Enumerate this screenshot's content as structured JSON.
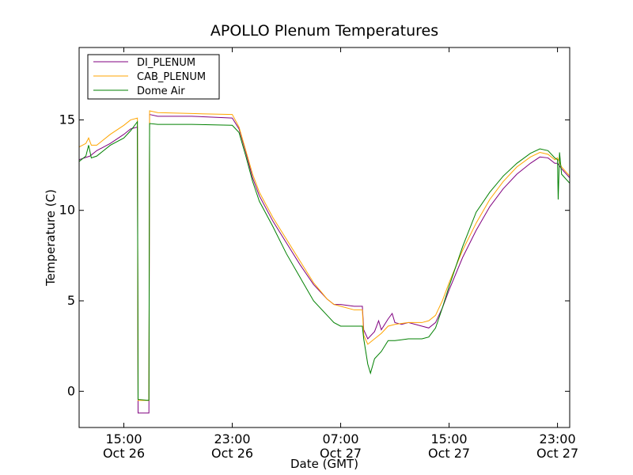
{
  "chart_data": {
    "type": "line",
    "title": "APOLLO Plenum Temperatures",
    "xlabel": "Date (GMT)",
    "ylabel": "Temperature (C)",
    "xlim": [
      11.7,
      47.9
    ],
    "ylim": [
      -2,
      19
    ],
    "x_unit": "hours since Oct 26 00:00 GMT",
    "x_ticks": [
      {
        "value": 15,
        "line1": "15:00",
        "line2": "Oct 26"
      },
      {
        "value": 23,
        "line1": "23:00",
        "line2": "Oct 26"
      },
      {
        "value": 31,
        "line1": "07:00",
        "line2": "Oct 27"
      },
      {
        "value": 39,
        "line1": "15:00",
        "line2": "Oct 27"
      },
      {
        "value": 47,
        "line1": "23:00",
        "line2": "Oct 27"
      }
    ],
    "y_ticks": [
      {
        "value": 0,
        "label": "0"
      },
      {
        "value": 5,
        "label": "5"
      },
      {
        "value": 10,
        "label": "10"
      },
      {
        "value": 15,
        "label": "15"
      }
    ],
    "legend_position": "top-left",
    "series": [
      {
        "name": "DI_PLENUM",
        "color": "#800080",
        "points": [
          [
            11.7,
            12.8
          ],
          [
            12.5,
            13.0
          ],
          [
            13,
            13.3
          ],
          [
            14,
            13.7
          ],
          [
            15,
            14.2
          ],
          [
            15.5,
            14.5
          ],
          [
            16,
            14.6
          ],
          [
            16.05,
            -1.2
          ],
          [
            16.85,
            -1.2
          ],
          [
            16.9,
            15.3
          ],
          [
            17.5,
            15.2
          ],
          [
            20,
            15.2
          ],
          [
            23,
            15.1
          ],
          [
            23.5,
            14.5
          ],
          [
            24,
            13.2
          ],
          [
            24.5,
            11.8
          ],
          [
            25,
            10.8
          ],
          [
            26,
            9.4
          ],
          [
            27,
            8.2
          ],
          [
            28,
            7.0
          ],
          [
            29,
            5.9
          ],
          [
            30,
            5.1
          ],
          [
            30.5,
            4.8
          ],
          [
            31,
            4.8
          ],
          [
            32,
            4.7
          ],
          [
            32.6,
            4.7
          ],
          [
            32.7,
            3.4
          ],
          [
            33,
            2.9
          ],
          [
            33.5,
            3.3
          ],
          [
            33.8,
            3.9
          ],
          [
            34,
            3.4
          ],
          [
            34.5,
            4.0
          ],
          [
            34.8,
            4.3
          ],
          [
            35,
            3.8
          ],
          [
            35.5,
            3.7
          ],
          [
            36,
            3.8
          ],
          [
            37,
            3.6
          ],
          [
            37.5,
            3.5
          ],
          [
            38,
            3.8
          ],
          [
            38.5,
            4.6
          ],
          [
            39,
            5.6
          ],
          [
            40,
            7.4
          ],
          [
            41,
            8.9
          ],
          [
            42,
            10.2
          ],
          [
            43,
            11.2
          ],
          [
            44,
            12.0
          ],
          [
            45,
            12.6
          ],
          [
            45.7,
            12.95
          ],
          [
            46.3,
            12.9
          ],
          [
            46.8,
            12.6
          ],
          [
            47,
            12.6
          ],
          [
            47.3,
            12.3
          ],
          [
            47.9,
            11.8
          ]
        ]
      },
      {
        "name": "CAB_PLENUM",
        "color": "#ffa500",
        "points": [
          [
            11.7,
            13.5
          ],
          [
            12.2,
            13.7
          ],
          [
            12.4,
            14.0
          ],
          [
            12.6,
            13.6
          ],
          [
            13,
            13.6
          ],
          [
            14,
            14.2
          ],
          [
            15,
            14.7
          ],
          [
            15.5,
            15.0
          ],
          [
            16,
            15.1
          ],
          [
            16.05,
            -0.5
          ],
          [
            16.85,
            -0.5
          ],
          [
            16.9,
            15.5
          ],
          [
            17.5,
            15.4
          ],
          [
            20,
            15.35
          ],
          [
            23,
            15.3
          ],
          [
            23.5,
            14.6
          ],
          [
            24,
            13.3
          ],
          [
            24.5,
            12.0
          ],
          [
            25,
            11.0
          ],
          [
            26,
            9.6
          ],
          [
            27,
            8.4
          ],
          [
            28,
            7.2
          ],
          [
            29,
            6.0
          ],
          [
            30,
            5.1
          ],
          [
            30.5,
            4.8
          ],
          [
            31,
            4.7
          ],
          [
            32,
            4.5
          ],
          [
            32.6,
            4.5
          ],
          [
            32.7,
            3.1
          ],
          [
            33,
            2.6
          ],
          [
            33.5,
            2.9
          ],
          [
            34,
            3.2
          ],
          [
            34.5,
            3.6
          ],
          [
            35,
            3.7
          ],
          [
            36,
            3.8
          ],
          [
            37,
            3.8
          ],
          [
            37.5,
            3.9
          ],
          [
            38,
            4.2
          ],
          [
            38.5,
            5.0
          ],
          [
            39,
            6.0
          ],
          [
            40,
            7.8
          ],
          [
            41,
            9.3
          ],
          [
            42,
            10.6
          ],
          [
            43,
            11.6
          ],
          [
            44,
            12.4
          ],
          [
            45,
            12.95
          ],
          [
            45.7,
            13.2
          ],
          [
            46.3,
            13.1
          ],
          [
            46.8,
            12.8
          ],
          [
            47,
            12.9
          ],
          [
            47.3,
            12.4
          ],
          [
            47.9,
            11.9
          ]
        ]
      },
      {
        "name": "Dome Air",
        "color": "#008000",
        "points": [
          [
            11.7,
            12.7
          ],
          [
            12.2,
            13.0
          ],
          [
            12.4,
            13.6
          ],
          [
            12.6,
            12.9
          ],
          [
            13,
            13.0
          ],
          [
            14,
            13.6
          ],
          [
            15,
            14.0
          ],
          [
            15.5,
            14.4
          ],
          [
            16,
            14.9
          ],
          [
            16.05,
            -0.45
          ],
          [
            16.85,
            -0.5
          ],
          [
            16.9,
            14.8
          ],
          [
            17.5,
            14.75
          ],
          [
            20,
            14.75
          ],
          [
            23,
            14.7
          ],
          [
            23.5,
            14.3
          ],
          [
            24,
            13.0
          ],
          [
            24.5,
            11.6
          ],
          [
            25,
            10.5
          ],
          [
            26,
            9.1
          ],
          [
            27,
            7.6
          ],
          [
            28,
            6.3
          ],
          [
            29,
            5.0
          ],
          [
            30,
            4.2
          ],
          [
            30.5,
            3.8
          ],
          [
            31,
            3.6
          ],
          [
            32,
            3.6
          ],
          [
            32.6,
            3.6
          ],
          [
            32.7,
            2.9
          ],
          [
            33,
            1.5
          ],
          [
            33.2,
            1.0
          ],
          [
            33.5,
            1.8
          ],
          [
            34,
            2.2
          ],
          [
            34.5,
            2.8
          ],
          [
            35,
            2.8
          ],
          [
            36,
            2.9
          ],
          [
            37,
            2.9
          ],
          [
            37.5,
            3.0
          ],
          [
            38,
            3.5
          ],
          [
            38.5,
            4.6
          ],
          [
            39,
            5.8
          ],
          [
            40,
            8.0
          ],
          [
            41,
            9.9
          ],
          [
            42,
            11.0
          ],
          [
            43,
            11.9
          ],
          [
            44,
            12.6
          ],
          [
            45,
            13.15
          ],
          [
            45.7,
            13.4
          ],
          [
            46.3,
            13.3
          ],
          [
            46.8,
            12.9
          ],
          [
            47,
            12.8
          ],
          [
            47.05,
            10.6
          ],
          [
            47.15,
            13.2
          ],
          [
            47.3,
            12.0
          ],
          [
            47.9,
            11.5
          ]
        ]
      }
    ]
  }
}
